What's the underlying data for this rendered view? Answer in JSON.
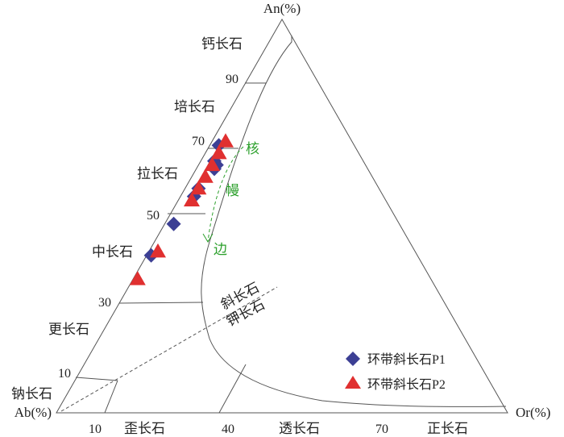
{
  "chart_data": {
    "type": "scatter",
    "title": "",
    "axes": {
      "top": "An(%)",
      "left": "Ab(%)",
      "right": "Or(%)"
    },
    "an_ticks": [
      "10",
      "30",
      "50",
      "70",
      "90"
    ],
    "or_ticks": [
      "10",
      "40",
      "70"
    ],
    "plagioclase_fields": [
      "钙长石",
      "培长石",
      "拉长石",
      "中长石",
      "更长石",
      "钠长石"
    ],
    "alkali_fields": [
      "歪长石",
      "透长石",
      "正长石"
    ],
    "boundary_labels": [
      "斜长石",
      "钾长石"
    ],
    "zone_labels": [
      "核",
      "幔",
      "边"
    ],
    "legend_position": "bottom-right",
    "series": [
      {
        "name": "环带斜长石P1",
        "marker": "diamond",
        "color": "#3c3f94",
        "points": [
          {
            "an": 68,
            "or": 2
          },
          {
            "an": 64,
            "or": 3
          },
          {
            "an": 63,
            "or": 4
          },
          {
            "an": 62,
            "or": 4
          },
          {
            "an": 57,
            "or": 3
          },
          {
            "an": 55,
            "or": 3
          },
          {
            "an": 48,
            "or": 2
          },
          {
            "an": 40,
            "or": 1
          }
        ]
      },
      {
        "name": "环带斜长石P2",
        "marker": "triangle",
        "color": "#e03030",
        "points": [
          {
            "an": 69,
            "or": 3
          },
          {
            "an": 66,
            "or": 3
          },
          {
            "an": 63,
            "or": 3
          },
          {
            "an": 60,
            "or": 3
          },
          {
            "an": 57,
            "or": 3
          },
          {
            "an": 54,
            "or": 3
          },
          {
            "an": 41,
            "or": 2
          },
          {
            "an": 34,
            "or": 1
          }
        ]
      }
    ]
  }
}
